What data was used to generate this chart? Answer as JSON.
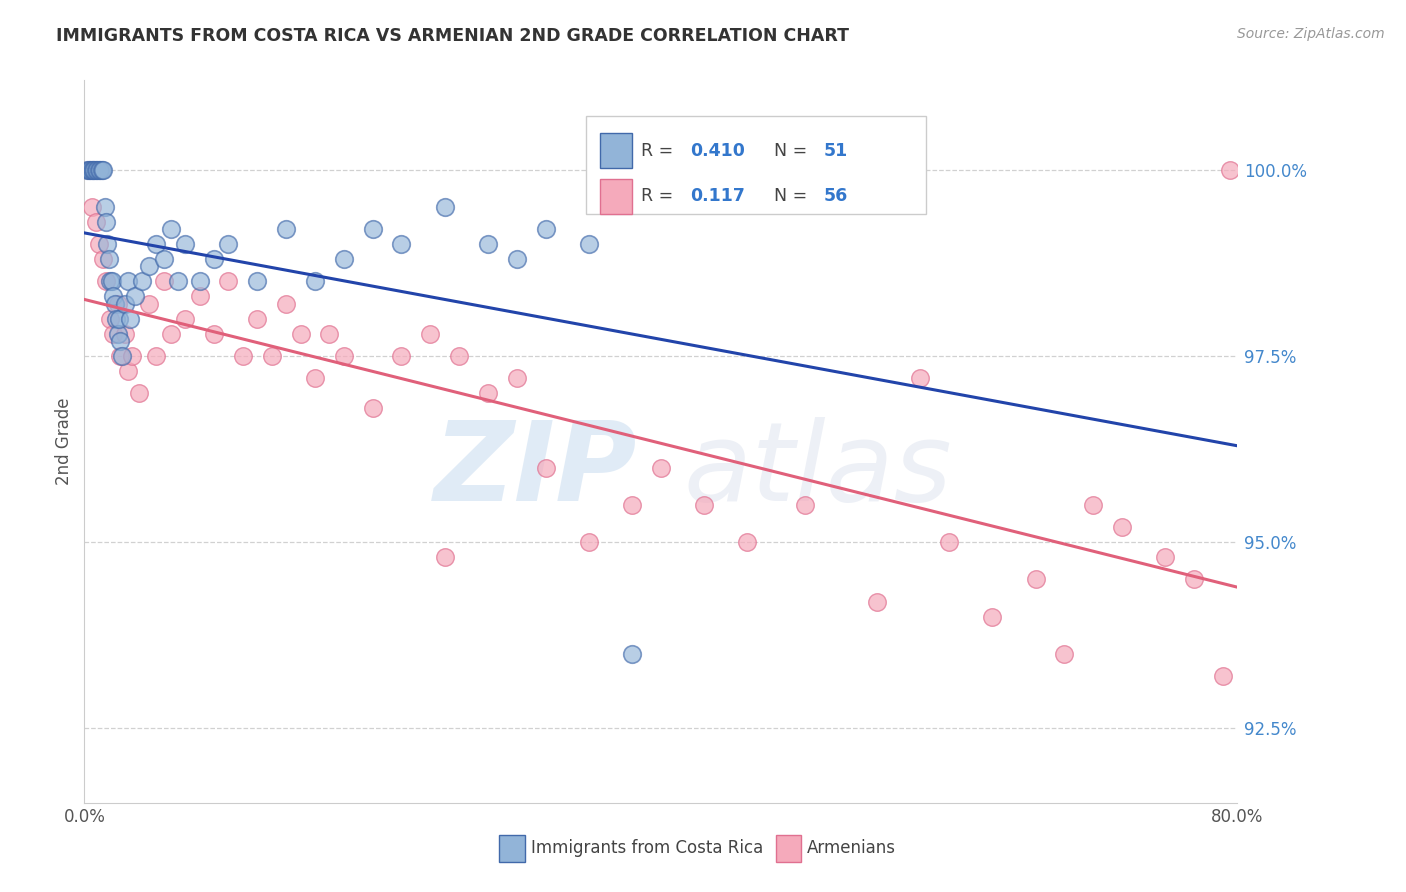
{
  "title": "IMMIGRANTS FROM COSTA RICA VS ARMENIAN 2ND GRADE CORRELATION CHART",
  "source": "Source: ZipAtlas.com",
  "ylabel": "2nd Grade",
  "xlim": [
    0.0,
    80.0
  ],
  "ylim": [
    91.5,
    101.2
  ],
  "yticks": [
    92.5,
    95.0,
    97.5,
    100.0
  ],
  "ytick_labels": [
    "92.5%",
    "95.0%",
    "97.5%",
    "100.0%"
  ],
  "blue_R": 0.41,
  "blue_N": 51,
  "pink_R": 0.117,
  "pink_N": 56,
  "blue_color": "#92B4D8",
  "blue_edge_color": "#4169AA",
  "pink_color": "#F5AABB",
  "pink_edge_color": "#E07090",
  "blue_line_color": "#2244AA",
  "pink_line_color": "#E0607A",
  "legend_label_blue": "Immigrants from Costa Rica",
  "legend_label_pink": "Armenians",
  "blue_x": [
    0.2,
    0.3,
    0.4,
    0.5,
    0.6,
    0.7,
    0.8,
    0.9,
    1.0,
    1.1,
    1.2,
    1.3,
    1.4,
    1.5,
    1.6,
    1.7,
    1.8,
    1.9,
    2.0,
    2.1,
    2.2,
    2.3,
    2.4,
    2.5,
    2.6,
    2.8,
    3.0,
    3.2,
    3.5,
    4.0,
    4.5,
    5.0,
    5.5,
    6.0,
    6.5,
    7.0,
    8.0,
    9.0,
    10.0,
    12.0,
    14.0,
    16.0,
    18.0,
    20.0,
    22.0,
    25.0,
    28.0,
    30.0,
    32.0,
    35.0,
    38.0
  ],
  "blue_y": [
    100.0,
    100.0,
    100.0,
    100.0,
    100.0,
    100.0,
    100.0,
    100.0,
    100.0,
    100.0,
    100.0,
    100.0,
    99.5,
    99.3,
    99.0,
    98.8,
    98.5,
    98.5,
    98.3,
    98.2,
    98.0,
    97.8,
    98.0,
    97.7,
    97.5,
    98.2,
    98.5,
    98.0,
    98.3,
    98.5,
    98.7,
    99.0,
    98.8,
    99.2,
    98.5,
    99.0,
    98.5,
    98.8,
    99.0,
    98.5,
    99.2,
    98.5,
    98.8,
    99.2,
    99.0,
    99.5,
    99.0,
    98.8,
    99.2,
    99.0,
    93.5
  ],
  "pink_x": [
    0.3,
    0.5,
    0.8,
    1.0,
    1.3,
    1.5,
    1.8,
    2.0,
    2.3,
    2.5,
    2.8,
    3.0,
    3.3,
    3.8,
    4.5,
    5.0,
    5.5,
    6.0,
    7.0,
    8.0,
    9.0,
    10.0,
    11.0,
    12.0,
    13.0,
    14.0,
    15.0,
    16.0,
    17.0,
    18.0,
    20.0,
    22.0,
    24.0,
    25.0,
    26.0,
    28.0,
    30.0,
    32.0,
    35.0,
    38.0,
    40.0,
    43.0,
    46.0,
    50.0,
    55.0,
    58.0,
    60.0,
    63.0,
    66.0,
    68.0,
    70.0,
    72.0,
    75.0,
    77.0,
    79.0,
    79.5
  ],
  "pink_y": [
    100.0,
    99.5,
    99.3,
    99.0,
    98.8,
    98.5,
    98.0,
    97.8,
    98.2,
    97.5,
    97.8,
    97.3,
    97.5,
    97.0,
    98.2,
    97.5,
    98.5,
    97.8,
    98.0,
    98.3,
    97.8,
    98.5,
    97.5,
    98.0,
    97.5,
    98.2,
    97.8,
    97.2,
    97.8,
    97.5,
    96.8,
    97.5,
    97.8,
    94.8,
    97.5,
    97.0,
    97.2,
    96.0,
    95.0,
    95.5,
    96.0,
    95.5,
    95.0,
    95.5,
    94.2,
    97.2,
    95.0,
    94.0,
    94.5,
    93.5,
    95.5,
    95.2,
    94.8,
    94.5,
    93.2,
    100.0
  ]
}
